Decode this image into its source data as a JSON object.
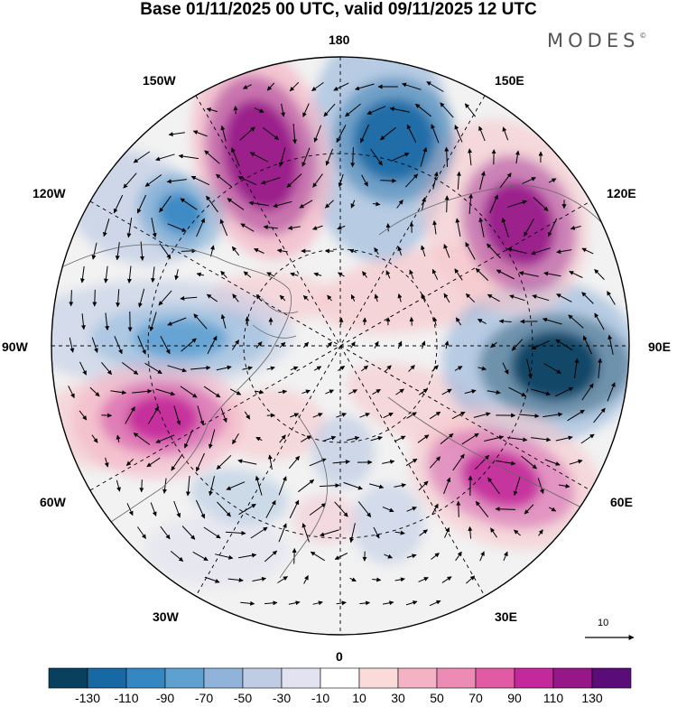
{
  "title": "Base 01/11/2025 00 UTC, valid 09/11/2025 12 UTC",
  "brand": "MODES",
  "brand_mark": "©",
  "longitude_labels": {
    "lon_180": "180",
    "lon_150e": "150E",
    "lon_120e": "120E",
    "lon_90e": "90E",
    "lon_60e": "60E",
    "lon_30e": "30E",
    "lon_0": "0",
    "lon_30w": "30W",
    "lon_60w": "60W",
    "lon_90w": "90W",
    "lon_120w": "120W",
    "lon_150w": "150W"
  },
  "reference_vector_label": "10",
  "colorbar": {
    "colors": [
      "#08405e",
      "#1868a4",
      "#3587c2",
      "#5ea0d0",
      "#8fb3d9",
      "#bfcce4",
      "#e2e2f0",
      "#ffffff",
      "#fbdada",
      "#f3b3c4",
      "#ec8bb4",
      "#e15aa4",
      "#c3299a",
      "#961788",
      "#5a0d78"
    ],
    "tick_labels": {
      "t_m130": "-130",
      "t_m110": "-110",
      "t_m90": "-90",
      "t_m70": "-70",
      "t_m50": "-50",
      "t_m30": "-30",
      "t_m10": "-10",
      "t_10": "10",
      "t_30": "30",
      "t_50": "50",
      "t_70": "70",
      "t_90": "90",
      "t_110": "110",
      "t_130": "130"
    }
  },
  "anomaly_centers": [
    {
      "name": "anomaly-max-150w",
      "value": 120,
      "color": "#961788"
    },
    {
      "name": "anomaly-min-160e",
      "value": -120,
      "color": "#1868a4"
    },
    {
      "name": "anomaly-max-120e",
      "value": 110,
      "color": "#961788"
    },
    {
      "name": "anomaly-min-90e",
      "value": -130,
      "color": "#08405e"
    },
    {
      "name": "anomaly-max-60e",
      "value": 90,
      "color": "#c3299a"
    },
    {
      "name": "anomaly-max-75w",
      "value": 110,
      "color": "#c3299a"
    },
    {
      "name": "anomaly-min-125w",
      "value": -80,
      "color": "#3587c2"
    },
    {
      "name": "anomaly-min-95w",
      "value": -70,
      "color": "#5ea0d0"
    },
    {
      "name": "anomaly-min-50w",
      "value": -50,
      "color": "#8fb3d9"
    },
    {
      "name": "anomaly-max-15w",
      "value": 40,
      "color": "#f3b3c4"
    }
  ]
}
